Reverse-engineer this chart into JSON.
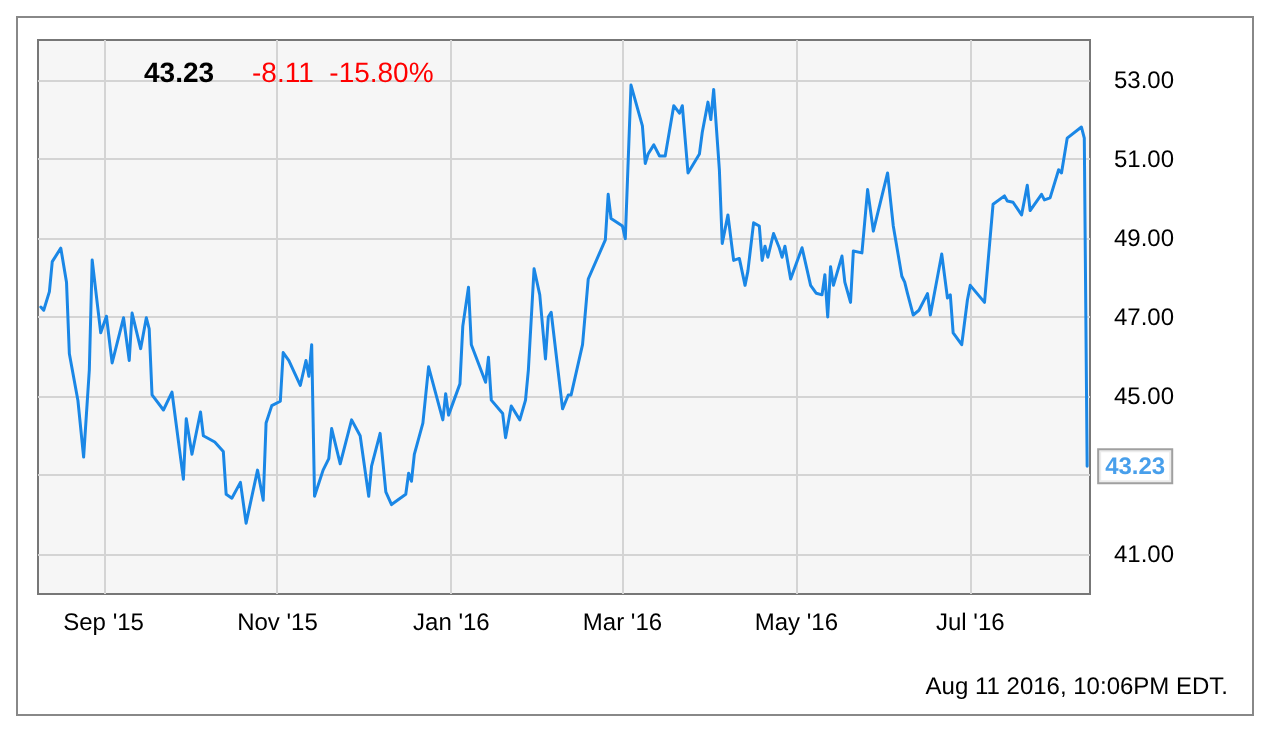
{
  "chart_data": {
    "type": "line",
    "title": "43.23",
    "subtitle": "-8.11  -15.80%",
    "annotations": [
      {
        "text": "43.23",
        "x": "2016-08-11",
        "y": 43.23
      },
      "Aug 11 2016, 10:06PM EDT."
    ],
    "x": [
      "2015-08-10",
      "2015-08-11",
      "2015-08-13",
      "2015-08-14",
      "2015-08-17",
      "2015-08-19",
      "2015-08-20",
      "2015-08-23",
      "2015-08-25",
      "2015-08-27",
      "2015-08-28",
      "2015-08-31",
      "2015-09-02",
      "2015-09-04",
      "2015-09-08",
      "2015-09-10",
      "2015-09-11",
      "2015-09-14",
      "2015-09-16",
      "2015-09-17",
      "2015-09-18",
      "2015-09-22",
      "2015-09-25",
      "2015-09-29",
      "2015-09-30",
      "2015-10-02",
      "2015-10-05",
      "2015-10-06",
      "2015-10-10",
      "2015-10-13",
      "2015-10-14",
      "2015-10-16",
      "2015-10-19",
      "2015-10-21",
      "2015-10-25",
      "2015-10-27",
      "2015-10-28",
      "2015-10-30",
      "2015-11-02",
      "2015-11-03",
      "2015-11-05",
      "2015-11-09",
      "2015-11-11",
      "2015-11-12",
      "2015-11-13",
      "2015-11-14",
      "2015-11-17",
      "2015-11-19",
      "2015-11-20",
      "2015-11-23",
      "2015-11-27",
      "2015-11-30",
      "2015-12-03",
      "2015-12-04",
      "2015-12-07",
      "2015-12-09",
      "2015-12-11",
      "2015-12-16",
      "2015-12-17",
      "2015-12-18",
      "2015-12-19",
      "2015-12-22",
      "2015-12-24",
      "2015-12-29",
      "2015-12-30",
      "2015-12-31",
      "2016-01-04",
      "2016-01-05",
      "2016-01-07",
      "2016-01-08",
      "2016-01-13",
      "2016-01-14",
      "2016-01-15",
      "2016-01-19",
      "2016-01-20",
      "2016-01-22",
      "2016-01-25",
      "2016-01-27",
      "2016-01-28",
      "2016-01-30",
      "2016-02-01",
      "2016-02-03",
      "2016-02-04",
      "2016-02-05",
      "2016-02-09",
      "2016-02-11",
      "2016-02-12",
      "2016-02-16",
      "2016-02-18",
      "2016-02-24",
      "2016-02-25",
      "2016-02-26",
      "2016-03-01",
      "2016-03-02",
      "2016-03-04",
      "2016-03-08",
      "2016-03-09",
      "2016-03-10",
      "2016-03-12",
      "2016-03-14",
      "2016-03-16",
      "2016-03-19",
      "2016-03-21",
      "2016-03-22",
      "2016-03-24",
      "2016-03-28",
      "2016-03-29",
      "2016-03-31",
      "2016-04-01",
      "2016-04-02",
      "2016-04-04",
      "2016-04-05",
      "2016-04-07",
      "2016-04-09",
      "2016-04-11",
      "2016-04-13",
      "2016-04-14",
      "2016-04-16",
      "2016-04-18",
      "2016-04-19",
      "2016-04-20",
      "2016-04-21",
      "2016-04-23",
      "2016-04-25",
      "2016-04-26",
      "2016-04-27",
      "2016-04-29",
      "2016-05-03",
      "2016-05-06",
      "2016-05-08",
      "2016-05-10",
      "2016-05-11",
      "2016-05-12",
      "2016-05-13",
      "2016-05-14",
      "2016-05-17",
      "2016-05-18",
      "2016-05-20",
      "2016-05-21",
      "2016-05-24",
      "2016-05-26",
      "2016-05-28",
      "2016-06-02",
      "2016-06-04",
      "2016-06-07",
      "2016-06-08",
      "2016-06-09",
      "2016-06-11",
      "2016-06-13",
      "2016-06-16",
      "2016-06-17",
      "2016-06-21",
      "2016-06-23",
      "2016-06-24",
      "2016-06-25",
      "2016-06-28",
      "2016-06-30",
      "2016-07-01",
      "2016-07-06",
      "2016-07-09",
      "2016-07-13",
      "2016-07-14",
      "2016-07-16",
      "2016-07-19",
      "2016-07-21",
      "2016-07-22",
      "2016-07-26",
      "2016-07-27",
      "2016-07-29",
      "2016-08-01",
      "2016-08-02",
      "2016-08-04",
      "2016-08-09",
      "2016-08-10",
      "2016-08-11"
    ],
    "series": [
      {
        "color": "#1a87e6",
        "values": [
          47.25,
          47.17,
          47.64,
          48.4,
          48.74,
          47.88,
          46.07,
          44.89,
          43.46,
          45.66,
          48.44,
          46.6,
          47.02,
          45.84,
          46.98,
          45.9,
          47.1,
          46.2,
          46.98,
          46.7,
          45.03,
          44.65,
          45.1,
          42.9,
          44.43,
          43.53,
          44.6,
          44.0,
          43.84,
          43.6,
          42.52,
          42.42,
          42.82,
          41.79,
          43.13,
          42.37,
          44.32,
          44.76,
          44.87,
          46.1,
          45.9,
          45.27,
          45.9,
          45.5,
          46.3,
          42.47,
          43.13,
          43.42,
          44.18,
          43.29,
          44.4,
          44.0,
          42.47,
          43.23,
          44.06,
          42.58,
          42.26,
          42.52,
          43.05,
          42.85,
          43.53,
          44.32,
          45.74,
          44.4,
          45.06,
          44.52,
          45.31,
          46.77,
          47.75,
          46.3,
          45.35,
          45.98,
          44.9,
          44.56,
          43.95,
          44.75,
          44.4,
          44.9,
          45.66,
          48.22,
          47.56,
          45.94,
          47.0,
          47.12,
          44.68,
          45.03,
          45.03,
          46.3,
          47.96,
          48.95,
          50.1,
          49.49,
          49.3,
          48.98,
          52.86,
          51.83,
          50.88,
          51.12,
          51.35,
          51.07,
          51.07,
          52.34,
          52.15,
          52.34,
          50.64,
          51.12,
          51.67,
          52.43,
          51.99,
          52.75,
          50.72,
          48.86,
          49.58,
          48.43,
          48.48,
          47.8,
          48.16,
          49.38,
          49.3,
          48.43,
          48.79,
          48.51,
          49.11,
          48.75,
          48.51,
          48.79,
          47.96,
          48.75,
          47.8,
          47.6,
          47.56,
          48.07,
          47.0,
          48.27,
          47.8,
          48.54,
          47.88,
          47.37,
          48.67,
          48.62,
          50.22,
          49.17,
          50.64,
          49.3,
          48.03,
          47.88,
          47.59,
          47.05,
          47.17,
          47.59,
          47.05,
          48.59,
          47.48,
          47.56,
          46.6,
          46.3,
          47.43,
          47.8,
          47.37,
          49.85,
          50.06,
          49.93,
          49.9,
          49.58,
          50.33,
          49.69,
          50.1,
          49.96,
          50.01,
          50.72,
          50.64,
          51.52,
          51.8,
          51.52,
          43.23
        ]
      }
    ],
    "xlim": [
      "2015-08-09",
      "2016-08-12"
    ],
    "xticks": [
      {
        "value": "2015-09-01",
        "label": "Sep '15"
      },
      {
        "value": "2015-11-01",
        "label": "Nov '15"
      },
      {
        "value": "2016-01-01",
        "label": "Jan '16"
      },
      {
        "value": "2016-03-01",
        "label": "Mar '16"
      },
      {
        "value": "2016-05-01",
        "label": "May '16"
      },
      {
        "value": "2016-07-01",
        "label": "Jul '16"
      }
    ],
    "ylim": [
      40,
      54
    ],
    "yticks": [
      {
        "value": 41,
        "label": "41.00"
      },
      {
        "value": 43,
        "label": null
      },
      {
        "value": 45,
        "label": "45.00"
      },
      {
        "value": 47,
        "label": "47.00"
      },
      {
        "value": 49,
        "label": "49.00"
      },
      {
        "value": 51,
        "label": "51.00"
      },
      {
        "value": 53,
        "label": "53.00"
      }
    ],
    "grid": true,
    "marker": "none",
    "line_style": "solid"
  }
}
